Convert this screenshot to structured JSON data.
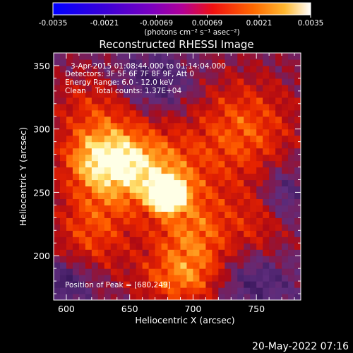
{
  "colorbar": {
    "ticks": [
      "-0.0035",
      "-0.0021",
      "-0.00069",
      "0.00069",
      "0.0021",
      "0.0035"
    ],
    "tick_values": [
      -0.0035,
      -0.0021,
      -0.00069,
      0.00069,
      0.0021,
      0.0035
    ],
    "units_label": "(photons cm⁻² s⁻¹ asec⁻²)",
    "colors": [
      "#0000ff",
      "#4000d0",
      "#8000c0",
      "#c00090",
      "#ff0000",
      "#ff6000",
      "#ffb020",
      "#ffffff"
    ]
  },
  "chart_data": {
    "type": "heatmap",
    "title": "Reconstructed RHESSI Image",
    "xlabel": "Heliocentric X (arcsec)",
    "ylabel": "Heliocentric Y (arcsec)",
    "xlim": [
      590,
      785
    ],
    "ylim": [
      165,
      360
    ],
    "xticks": [
      600,
      650,
      700,
      750
    ],
    "yticks": [
      200,
      250,
      300,
      350
    ],
    "annotations": [
      "3-Apr-2015 01:08:44.000 to 01:14:04.000",
      "Detectors: 3F 5F 6F 7F 8F 9F, Att 0",
      "Energy Range: 6.0 - 12.0 keV",
      "Clean    Total counts: 1.37E+04"
    ],
    "peak_label": "Position of Peak = [680,249]",
    "peak": [
      680,
      249
    ],
    "background_color": "#5c2d78",
    "sources": [
      {
        "x": 680,
        "y": 249,
        "sx": 9,
        "sy": 8,
        "amp": 1.0
      },
      {
        "x": 660,
        "y": 268,
        "sx": 30,
        "sy": 22,
        "amp": 0.55
      },
      {
        "x": 625,
        "y": 278,
        "sx": 22,
        "sy": 18,
        "amp": 0.45
      },
      {
        "x": 700,
        "y": 215,
        "sx": 25,
        "sy": 28,
        "amp": 0.45
      },
      {
        "x": 740,
        "y": 300,
        "sx": 30,
        "sy": 30,
        "amp": 0.4
      },
      {
        "x": 620,
        "y": 220,
        "sx": 22,
        "sy": 25,
        "amp": 0.35
      },
      {
        "x": 760,
        "y": 230,
        "sx": 18,
        "sy": 20,
        "amp": 0.3
      },
      {
        "x": 690,
        "y": 180,
        "sx": 25,
        "sy": 15,
        "amp": 0.3
      },
      {
        "x": 630,
        "y": 320,
        "sx": 30,
        "sy": 20,
        "amp": 0.3
      }
    ],
    "dims": [
      {
        "x": 665,
        "y": 335,
        "sx": 22,
        "sy": 16,
        "amp": 0.35
      },
      {
        "x": 770,
        "y": 245,
        "sx": 14,
        "sy": 18,
        "amp": 0.35
      },
      {
        "x": 600,
        "y": 180,
        "sx": 15,
        "sy": 12,
        "amp": 0.3
      },
      {
        "x": 745,
        "y": 180,
        "sx": 22,
        "sy": 16,
        "amp": 0.25
      }
    ]
  },
  "timestamp": "20-May-2022 07:16"
}
